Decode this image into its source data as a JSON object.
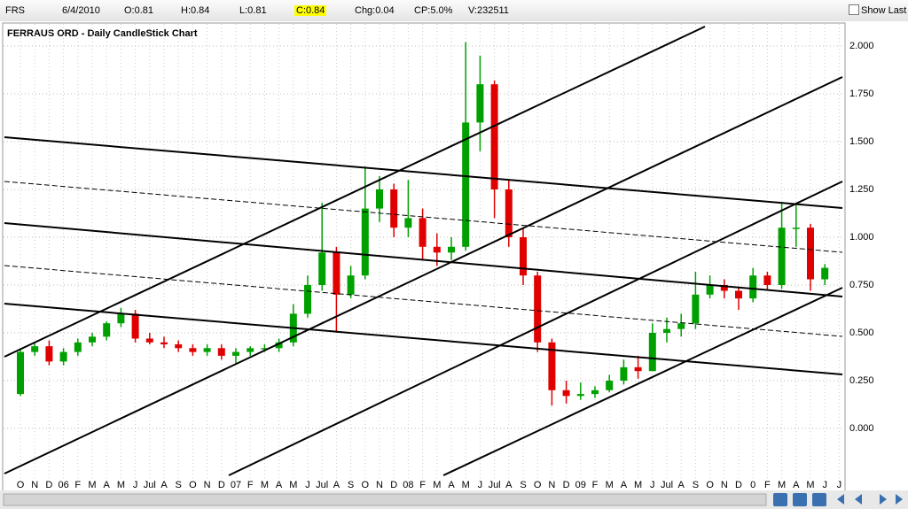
{
  "header": {
    "symbol": "FRS",
    "date": "6/4/2010",
    "open": "O:0.81",
    "high": "H:0.84",
    "low": "L:0.81",
    "close": "C:0.84",
    "change": "Chg:0.04",
    "change_pct": "CP:5.0%",
    "volume": "V:232511",
    "show_last": "Show Last"
  },
  "chart_data": {
    "type": "candlestick",
    "title": "FERRAUS ORD - Daily CandleStick Chart",
    "categories": [
      "O",
      "N",
      "D",
      "06",
      "F",
      "M",
      "A",
      "M",
      "J",
      "Jul",
      "A",
      "S",
      "O",
      "N",
      "D",
      "07",
      "F",
      "M",
      "A",
      "M",
      "J",
      "Jul",
      "A",
      "S",
      "O",
      "N",
      "D",
      "08",
      "F",
      "M",
      "A",
      "M",
      "J",
      "Jul",
      "A",
      "S",
      "O",
      "N",
      "D",
      "09",
      "F",
      "M",
      "A",
      "M",
      "J",
      "Jul",
      "A",
      "S",
      "O",
      "N",
      "D",
      "0",
      "F",
      "M",
      "A",
      "M",
      "J",
      "J"
    ],
    "open": [
      0.18,
      0.4,
      0.43,
      0.35,
      0.4,
      0.45,
      0.48,
      0.55,
      0.6,
      0.47,
      0.45,
      0.44,
      0.42,
      0.4,
      0.42,
      0.38,
      0.4,
      0.42,
      0.42,
      0.45,
      0.6,
      0.75,
      0.92,
      0.7,
      0.8,
      1.15,
      1.25,
      1.05,
      1.1,
      0.95,
      0.92,
      0.95,
      1.6,
      1.8,
      1.25,
      1.0,
      0.8,
      0.45,
      0.2,
      0.17,
      0.18,
      0.2,
      0.25,
      0.32,
      0.3,
      0.5,
      0.52,
      0.55,
      0.7,
      0.75,
      0.72,
      0.68,
      0.8,
      0.75,
      1.05,
      1.05,
      0.78,
      null
    ],
    "high": [
      0.42,
      0.45,
      0.46,
      0.42,
      0.47,
      0.5,
      0.56,
      0.63,
      0.62,
      0.5,
      0.48,
      0.46,
      0.44,
      0.44,
      0.44,
      0.42,
      0.43,
      0.44,
      0.47,
      0.65,
      0.8,
      1.18,
      0.95,
      0.85,
      1.37,
      1.32,
      1.28,
      1.3,
      1.15,
      1.02,
      1.0,
      2.02,
      1.95,
      1.82,
      1.3,
      1.05,
      0.82,
      0.47,
      0.25,
      0.24,
      0.22,
      0.28,
      0.36,
      0.38,
      0.55,
      0.58,
      0.6,
      0.82,
      0.8,
      0.78,
      0.74,
      0.84,
      0.82,
      1.18,
      1.17,
      1.07,
      0.86,
      null
    ],
    "low": [
      0.17,
      0.38,
      0.33,
      0.33,
      0.38,
      0.43,
      0.46,
      0.53,
      0.45,
      0.44,
      0.42,
      0.4,
      0.38,
      0.38,
      0.36,
      0.34,
      0.38,
      0.4,
      0.4,
      0.43,
      0.58,
      0.72,
      0.5,
      0.68,
      0.78,
      1.08,
      1.0,
      1.0,
      0.88,
      0.85,
      0.88,
      0.93,
      1.45,
      1.1,
      0.95,
      0.75,
      0.4,
      0.12,
      0.13,
      0.15,
      0.16,
      0.19,
      0.23,
      0.26,
      0.3,
      0.45,
      0.48,
      0.52,
      0.68,
      0.68,
      0.62,
      0.66,
      0.72,
      0.73,
      0.95,
      0.72,
      0.75,
      null
    ],
    "close": [
      0.4,
      0.43,
      0.35,
      0.4,
      0.45,
      0.48,
      0.55,
      0.6,
      0.47,
      0.45,
      0.44,
      0.42,
      0.4,
      0.42,
      0.38,
      0.4,
      0.42,
      0.42,
      0.45,
      0.6,
      0.75,
      0.92,
      0.7,
      0.8,
      1.15,
      1.25,
      1.05,
      1.1,
      0.95,
      0.92,
      0.95,
      1.6,
      1.8,
      1.25,
      1.0,
      0.8,
      0.45,
      0.2,
      0.17,
      0.18,
      0.2,
      0.25,
      0.32,
      0.3,
      0.5,
      0.52,
      0.55,
      0.7,
      0.75,
      0.72,
      0.68,
      0.8,
      0.75,
      1.05,
      1.05,
      0.78,
      0.84,
      null
    ],
    "up_color": "#00a000",
    "down_color": "#e00000",
    "ylim": [
      -0.25,
      2.125
    ],
    "yticks": [
      {
        "value": 0,
        "label": "0.000"
      },
      {
        "value": 0.25,
        "label": "0.250"
      },
      {
        "value": 0.5,
        "label": "0.500"
      },
      {
        "value": 0.75,
        "label": "0.750"
      },
      {
        "value": 1,
        "label": "1.000"
      },
      {
        "value": 1.25,
        "label": "1.250"
      },
      {
        "value": 1.5,
        "label": "1.500"
      },
      {
        "value": 1.75,
        "label": "1.750"
      },
      {
        "value": 2,
        "label": "2.000"
      }
    ],
    "grid": true
  }
}
